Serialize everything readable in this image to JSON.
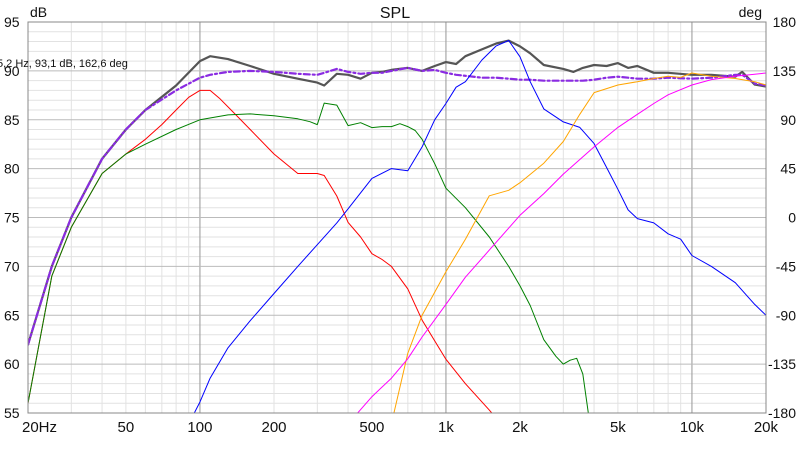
{
  "chart_data": {
    "type": "line",
    "title": "SPL",
    "ylabel_left": "dB",
    "ylabel_right": "deg",
    "readout": "5,2 Hz, 93,1 dB, 162,6 deg",
    "x_scale": "log",
    "xlim": [
      20,
      20000
    ],
    "ylim": [
      55,
      95
    ],
    "y2lim": [
      -180,
      180
    ],
    "grid": true,
    "x_ticks": [
      {
        "v": 20,
        "label": "20Hz"
      },
      {
        "v": 50,
        "label": "50"
      },
      {
        "v": 100,
        "label": "100"
      },
      {
        "v": 200,
        "label": "200"
      },
      {
        "v": 500,
        "label": "500"
      },
      {
        "v": 1000,
        "label": "1k"
      },
      {
        "v": 2000,
        "label": "2k"
      },
      {
        "v": 5000,
        "label": "5k"
      },
      {
        "v": 10000,
        "label": "10k"
      },
      {
        "v": 20000,
        "label": "20k"
      }
    ],
    "y_ticks": [
      95,
      90,
      85,
      80,
      75,
      70,
      65,
      60,
      55
    ],
    "y2_ticks": [
      180,
      135,
      90,
      45,
      0,
      -45,
      -90,
      -135,
      -180
    ],
    "series": [
      {
        "color": "#555555",
        "axis": "left",
        "width": 2.2,
        "dash": "",
        "x": [
          20,
          25,
          30,
          40,
          50,
          60,
          80,
          100,
          110,
          130,
          160,
          200,
          250,
          300,
          320,
          360,
          400,
          450,
          500,
          550,
          600,
          700,
          800,
          900,
          1000,
          1100,
          1200,
          1400,
          1600,
          1800,
          2000,
          2200,
          2500,
          3000,
          3300,
          3600,
          4000,
          4500,
          5000,
          5500,
          6000,
          7000,
          8000,
          10000,
          12000,
          15000,
          16000,
          18000,
          20000
        ],
        "y": [
          62,
          70,
          75,
          81,
          84,
          86,
          88.5,
          91,
          91.5,
          91.2,
          90.5,
          89.7,
          89.2,
          88.8,
          88.5,
          89.7,
          89.6,
          89.2,
          89.8,
          89.9,
          90.1,
          90.3,
          90,
          90.5,
          90.9,
          90.7,
          91.5,
          92.2,
          92.8,
          93.1,
          92.5,
          91.8,
          90.6,
          90.2,
          89.9,
          90.3,
          90.6,
          90.5,
          90.8,
          90.3,
          90.5,
          89.8,
          89.8,
          89.6,
          89.6,
          89.4,
          89.9,
          88.6,
          88.4
        ]
      },
      {
        "color": "#8a2be2",
        "axis": "left",
        "width": 2.2,
        "dash": "6,3,2,3",
        "x": [
          20,
          25,
          30,
          40,
          50,
          60,
          80,
          100,
          110,
          130,
          160,
          200,
          250,
          300,
          320,
          360,
          400,
          450,
          500,
          550,
          600,
          700,
          800,
          900,
          1000,
          1100,
          1200,
          1400,
          1600,
          1800,
          2000,
          2200,
          2500,
          3000,
          3300,
          3600,
          4000,
          4500,
          5000,
          5500,
          6000,
          7000,
          8000,
          10000,
          12000,
          15000,
          16000,
          18000,
          20000
        ],
        "y": [
          62,
          70,
          75,
          81,
          84,
          86,
          88,
          89.3,
          89.6,
          89.9,
          90,
          89.9,
          89.7,
          89.6,
          89.8,
          90.2,
          89.9,
          89.7,
          89.8,
          89.8,
          90,
          90.3,
          90,
          90.1,
          89.8,
          89.6,
          89.5,
          89.3,
          89.3,
          89.2,
          89.1,
          89.1,
          89,
          89,
          89,
          89,
          89.1,
          89.3,
          89.4,
          89.3,
          89.2,
          89.2,
          89.3,
          89.2,
          89.3,
          89.6,
          89.6,
          88.7,
          88.5
        ]
      },
      {
        "color": "#ff0000",
        "axis": "left",
        "width": 1,
        "dash": "",
        "x": [
          20,
          25,
          30,
          40,
          50,
          60,
          70,
          80,
          90,
          100,
          110,
          120,
          140,
          160,
          200,
          250,
          300,
          320,
          360,
          400,
          450,
          500,
          550,
          600,
          700,
          800,
          1000,
          1200,
          1500,
          1800
        ],
        "y": [
          56,
          69,
          74,
          79.5,
          81.5,
          83,
          84.5,
          86,
          87.3,
          88,
          88,
          87.2,
          85.5,
          84,
          81.5,
          79.5,
          79.5,
          79.3,
          77.2,
          74.5,
          73,
          71.3,
          70.7,
          70,
          67.7,
          64.5,
          60.5,
          58,
          55.3,
          53
        ]
      },
      {
        "color": "#008000",
        "axis": "left",
        "width": 1,
        "dash": "",
        "x": [
          20,
          25,
          30,
          40,
          50,
          60,
          80,
          100,
          130,
          160,
          200,
          250,
          280,
          300,
          320,
          360,
          400,
          450,
          500,
          550,
          600,
          650,
          700,
          750,
          800,
          900,
          1000,
          1200,
          1500,
          1800,
          2000,
          2200,
          2500,
          2800,
          3000,
          3200,
          3400,
          3600,
          3800
        ],
        "y": [
          56,
          69,
          74,
          79.5,
          81.5,
          82.5,
          84,
          85,
          85.5,
          85.6,
          85.4,
          85.1,
          84.8,
          84.5,
          86.7,
          86.5,
          84.4,
          84.7,
          84.2,
          84.3,
          84.3,
          84.6,
          84.3,
          83.9,
          83,
          80.5,
          78,
          76,
          73,
          70,
          68,
          66,
          62.5,
          60.8,
          60,
          60.4,
          60.6,
          59,
          54.8
        ]
      },
      {
        "color": "#0000ff",
        "axis": "right",
        "width": 1,
        "dash": "",
        "x": [
          90,
          100,
          110,
          130,
          160,
          200,
          250,
          300,
          360,
          400,
          500,
          600,
          700,
          800,
          900,
          1000,
          1100,
          1200,
          1400,
          1600,
          1800,
          2000,
          2200,
          2500,
          3000,
          3500,
          4000,
          4500,
          5000,
          5500,
          6000,
          7000,
          8000,
          9000,
          10000,
          12000,
          15000,
          18000,
          20000
        ],
        "y": [
          -190,
          -170,
          -148,
          -120,
          -95,
          -70,
          -45,
          -25,
          -5,
          8,
          36,
          45,
          43,
          65,
          90,
          105,
          120,
          125,
          145,
          158,
          163,
          148,
          125,
          100,
          88,
          83,
          68,
          46,
          26,
          7,
          -1,
          -5,
          -15,
          -20,
          -35,
          -45,
          -60,
          -80,
          -90
        ]
      },
      {
        "color": "#ffa500",
        "axis": "right",
        "width": 1,
        "dash": "",
        "x": [
          600,
          700,
          800,
          1000,
          1200,
          1500,
          1800,
          2000,
          2500,
          3000,
          3500,
          4000,
          5000,
          6000,
          7000,
          8000,
          9000,
          10000,
          12000,
          15000,
          18000,
          20000
        ],
        "y": [
          -190,
          -125,
          -90,
          -50,
          -20,
          20,
          25,
          32,
          50,
          70,
          95,
          115,
          122,
          125,
          128,
          130,
          129,
          133,
          130,
          128,
          125,
          122
        ]
      },
      {
        "color": "#ff00ff",
        "axis": "right",
        "width": 1,
        "dash": "",
        "x": [
          400,
          500,
          600,
          700,
          800,
          1000,
          1200,
          1500,
          2000,
          2500,
          3000,
          4000,
          5000,
          6000,
          7000,
          8000,
          10000,
          12000,
          15000,
          20000
        ],
        "y": [
          -190,
          -165,
          -148,
          -130,
          -110,
          -80,
          -55,
          -30,
          2,
          22,
          40,
          65,
          83,
          95,
          105,
          113,
          122,
          127,
          130,
          133
        ]
      }
    ]
  }
}
